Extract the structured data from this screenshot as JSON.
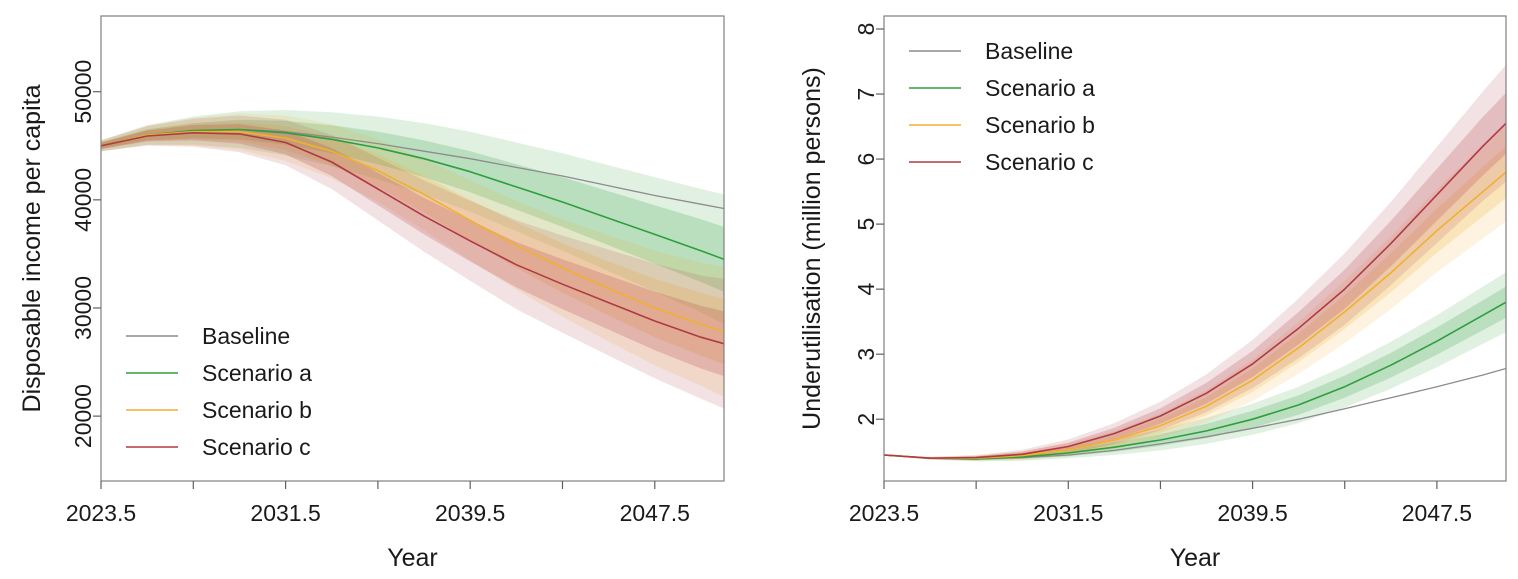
{
  "colors": {
    "baseline": "#8c8c8c",
    "scenario_a": "#2e9e3e",
    "scenario_b": "#f0b030",
    "scenario_c": "#b03a44"
  },
  "chart_data": [
    {
      "type": "line",
      "xlabel": "Year",
      "ylabel": "Disposable income per capita",
      "xlim": [
        2023.5,
        2050.5
      ],
      "ylim": [
        14000,
        57000
      ],
      "x_ticks": [
        2023.5,
        2027.5,
        2031.5,
        2035.5,
        2039.5,
        2043.5,
        2047.5
      ],
      "x_tick_labels": [
        "2023.5",
        "",
        "2031.5",
        "",
        "2039.5",
        "",
        "2047.5"
      ],
      "y_ticks": [
        20000,
        30000,
        40000,
        50000
      ],
      "y_tick_labels": [
        "20000",
        "30000",
        "40000",
        "50000"
      ],
      "legend_position": "bottom-left",
      "grid": false,
      "x": [
        2023.5,
        2025.5,
        2027.5,
        2029.5,
        2031.5,
        2033.5,
        2035.5,
        2037.5,
        2039.5,
        2041.5,
        2043.5,
        2045.5,
        2047.5,
        2049.5,
        2050.5
      ],
      "series": [
        {
          "name": "Baseline",
          "color_key": "baseline",
          "values": [
            45000,
            46000,
            46400,
            46500,
            46300,
            45800,
            45200,
            44500,
            43800,
            43000,
            42200,
            41300,
            40400,
            39600,
            39200
          ],
          "band": false
        },
        {
          "name": "Scenario a",
          "color_key": "scenario_a",
          "values": [
            45000,
            46000,
            46400,
            46500,
            46200,
            45600,
            44800,
            43800,
            42600,
            41200,
            39800,
            38300,
            36800,
            35300,
            34500
          ],
          "band_inner": [
            0.3,
            0.5,
            0.7,
            0.9,
            1.1,
            1.3,
            1.5,
            1.7,
            1.9,
            2.1,
            2.3,
            2.5,
            2.7,
            2.9,
            3.0
          ],
          "band_outer": [
            0.5,
            0.9,
            1.3,
            1.7,
            2.1,
            2.5,
            2.9,
            3.3,
            3.7,
            4.1,
            4.5,
            4.9,
            5.3,
            5.7,
            6.0
          ]
        },
        {
          "name": "Scenario b",
          "color_key": "scenario_b",
          "values": [
            45000,
            46000,
            46300,
            46300,
            45700,
            44500,
            42700,
            40500,
            38100,
            35800,
            33700,
            31800,
            30000,
            28500,
            27800
          ],
          "band_inner": [
            0.3,
            0.5,
            0.7,
            0.9,
            1.1,
            1.3,
            1.5,
            1.7,
            1.9,
            2.1,
            2.3,
            2.5,
            2.7,
            2.9,
            3.0
          ],
          "band_outer": [
            0.5,
            0.9,
            1.3,
            1.7,
            2.1,
            2.5,
            2.9,
            3.3,
            3.7,
            4.1,
            4.5,
            4.9,
            5.3,
            5.7,
            6.0
          ]
        },
        {
          "name": "Scenario c",
          "color_key": "scenario_c",
          "values": [
            45000,
            45900,
            46200,
            46100,
            45300,
            43500,
            41000,
            38500,
            36200,
            34000,
            32200,
            30500,
            28800,
            27300,
            26700
          ],
          "band_inner": [
            0.3,
            0.5,
            0.7,
            0.9,
            1.1,
            1.3,
            1.5,
            1.7,
            1.9,
            2.1,
            2.3,
            2.5,
            2.7,
            2.9,
            3.0
          ],
          "band_outer": [
            0.5,
            0.9,
            1.3,
            1.7,
            2.1,
            2.5,
            2.9,
            3.3,
            3.7,
            4.1,
            4.5,
            4.9,
            5.3,
            5.7,
            6.0
          ]
        }
      ]
    },
    {
      "type": "line",
      "xlabel": "Year",
      "ylabel": "Underutilisation (million persons)",
      "xlim": [
        2023.5,
        2050.5
      ],
      "ylim": [
        1.05,
        8.2
      ],
      "x_ticks": [
        2023.5,
        2027.5,
        2031.5,
        2035.5,
        2039.5,
        2043.5,
        2047.5
      ],
      "x_tick_labels": [
        "2023.5",
        "",
        "2031.5",
        "",
        "2039.5",
        "",
        "2047.5"
      ],
      "y_ticks": [
        2,
        3,
        4,
        5,
        6,
        7,
        8
      ],
      "y_tick_labels": [
        "2",
        "3",
        "4",
        "5",
        "6",
        "7",
        "8"
      ],
      "legend_position": "top-left",
      "grid": false,
      "x": [
        2023.5,
        2025.5,
        2027.5,
        2029.5,
        2031.5,
        2033.5,
        2035.5,
        2037.5,
        2039.5,
        2041.5,
        2043.5,
        2045.5,
        2047.5,
        2049.5,
        2050.5
      ],
      "series": [
        {
          "name": "Baseline",
          "color_key": "baseline",
          "values": [
            1.45,
            1.4,
            1.39,
            1.41,
            1.45,
            1.52,
            1.62,
            1.73,
            1.86,
            2.0,
            2.16,
            2.33,
            2.5,
            2.68,
            2.78
          ],
          "band": false
        },
        {
          "name": "Scenario a",
          "color_key": "scenario_a",
          "values": [
            1.45,
            1.4,
            1.39,
            1.42,
            1.48,
            1.57,
            1.68,
            1.82,
            2.0,
            2.22,
            2.5,
            2.83,
            3.2,
            3.6,
            3.8
          ],
          "band_inner": [
            0.0,
            0.01,
            0.02,
            0.03,
            0.05,
            0.07,
            0.09,
            0.11,
            0.13,
            0.15,
            0.17,
            0.19,
            0.21,
            0.23,
            0.24
          ],
          "band_outer": [
            0.0,
            0.02,
            0.04,
            0.06,
            0.08,
            0.12,
            0.16,
            0.2,
            0.24,
            0.28,
            0.32,
            0.36,
            0.4,
            0.44,
            0.46
          ]
        },
        {
          "name": "Scenario b",
          "color_key": "scenario_b",
          "values": [
            1.45,
            1.4,
            1.4,
            1.44,
            1.53,
            1.68,
            1.9,
            2.2,
            2.6,
            3.1,
            3.65,
            4.25,
            4.9,
            5.5,
            5.8
          ],
          "band_inner": [
            0.0,
            0.01,
            0.02,
            0.04,
            0.06,
            0.08,
            0.11,
            0.14,
            0.18,
            0.22,
            0.26,
            0.3,
            0.34,
            0.38,
            0.4
          ],
          "band_outer": [
            0.0,
            0.02,
            0.04,
            0.07,
            0.1,
            0.14,
            0.19,
            0.25,
            0.32,
            0.4,
            0.48,
            0.56,
            0.64,
            0.72,
            0.76
          ]
        },
        {
          "name": "Scenario c",
          "color_key": "scenario_c",
          "values": [
            1.45,
            1.4,
            1.41,
            1.46,
            1.58,
            1.78,
            2.05,
            2.4,
            2.85,
            3.4,
            4.0,
            4.7,
            5.45,
            6.2,
            6.55
          ],
          "band_inner": [
            0.0,
            0.01,
            0.02,
            0.04,
            0.06,
            0.09,
            0.12,
            0.16,
            0.2,
            0.25,
            0.3,
            0.35,
            0.4,
            0.45,
            0.47
          ],
          "band_outer": [
            0.0,
            0.02,
            0.04,
            0.07,
            0.11,
            0.16,
            0.22,
            0.29,
            0.37,
            0.46,
            0.55,
            0.64,
            0.74,
            0.84,
            0.9
          ]
        }
      ]
    }
  ]
}
